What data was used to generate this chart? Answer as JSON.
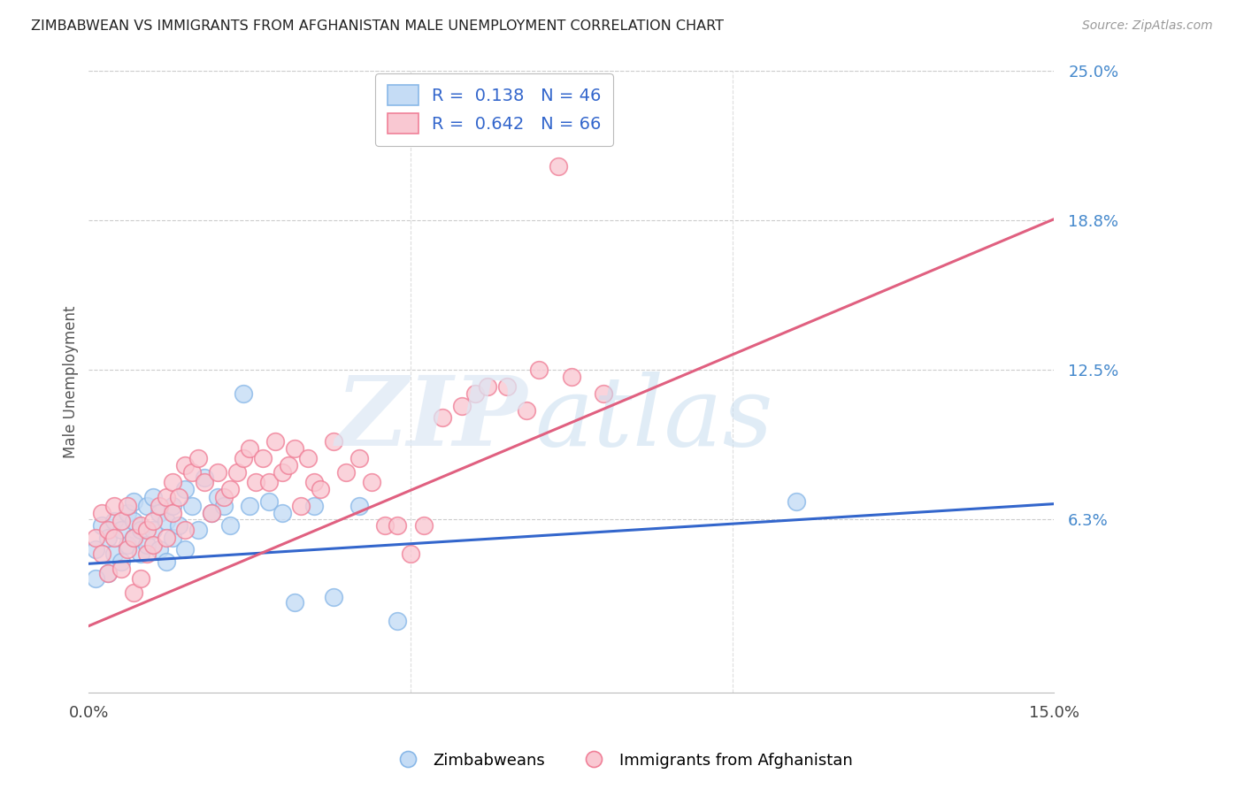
{
  "title": "ZIMBABWEAN VS IMMIGRANTS FROM AFGHANISTAN MALE UNEMPLOYMENT CORRELATION CHART",
  "source": "Source: ZipAtlas.com",
  "ylabel": "Male Unemployment",
  "x_min": 0.0,
  "x_max": 0.15,
  "y_min": -0.01,
  "y_max": 0.25,
  "y_tick_values": [
    0.0625,
    0.125,
    0.1875,
    0.25
  ],
  "y_tick_labels": [
    "6.3%",
    "12.5%",
    "18.8%",
    "25.0%"
  ],
  "blue_edge_color": "#89B8E8",
  "blue_face_color": "#C5DCF5",
  "pink_edge_color": "#F08098",
  "pink_face_color": "#F9C8D2",
  "blue_line_color": "#3366CC",
  "pink_line_color": "#E06080",
  "legend_text_color": "#3366CC",
  "bottom_legend_blue": "Zimbabweans",
  "bottom_legend_pink": "Immigrants from Afghanistan",
  "blue_trend_x0": 0.0,
  "blue_trend_y0": 0.044,
  "blue_trend_x1": 0.15,
  "blue_trend_y1": 0.069,
  "pink_trend_x0": 0.0,
  "pink_trend_y0": 0.018,
  "pink_trend_x1": 0.15,
  "pink_trend_y1": 0.188,
  "blue_scatter_x": [
    0.001,
    0.002,
    0.003,
    0.003,
    0.004,
    0.004,
    0.005,
    0.005,
    0.006,
    0.006,
    0.007,
    0.007,
    0.007,
    0.008,
    0.008,
    0.009,
    0.009,
    0.01,
    0.01,
    0.011,
    0.011,
    0.012,
    0.012,
    0.013,
    0.013,
    0.014,
    0.015,
    0.015,
    0.016,
    0.017,
    0.018,
    0.019,
    0.02,
    0.021,
    0.022,
    0.024,
    0.025,
    0.028,
    0.03,
    0.032,
    0.035,
    0.038,
    0.042,
    0.048,
    0.11,
    0.001
  ],
  "blue_scatter_y": [
    0.05,
    0.06,
    0.04,
    0.055,
    0.062,
    0.048,
    0.058,
    0.045,
    0.065,
    0.052,
    0.062,
    0.055,
    0.07,
    0.058,
    0.048,
    0.068,
    0.052,
    0.072,
    0.058,
    0.065,
    0.05,
    0.062,
    0.045,
    0.068,
    0.055,
    0.06,
    0.075,
    0.05,
    0.068,
    0.058,
    0.08,
    0.065,
    0.072,
    0.068,
    0.06,
    0.115,
    0.068,
    0.07,
    0.065,
    0.028,
    0.068,
    0.03,
    0.068,
    0.02,
    0.07,
    0.038
  ],
  "pink_scatter_x": [
    0.001,
    0.002,
    0.002,
    0.003,
    0.003,
    0.004,
    0.004,
    0.005,
    0.005,
    0.006,
    0.006,
    0.007,
    0.007,
    0.008,
    0.008,
    0.009,
    0.009,
    0.01,
    0.01,
    0.011,
    0.012,
    0.012,
    0.013,
    0.013,
    0.014,
    0.015,
    0.015,
    0.016,
    0.017,
    0.018,
    0.019,
    0.02,
    0.021,
    0.022,
    0.023,
    0.024,
    0.025,
    0.026,
    0.027,
    0.028,
    0.029,
    0.03,
    0.031,
    0.032,
    0.033,
    0.034,
    0.035,
    0.036,
    0.038,
    0.04,
    0.042,
    0.044,
    0.046,
    0.048,
    0.05,
    0.052,
    0.055,
    0.058,
    0.06,
    0.062,
    0.065,
    0.068,
    0.07,
    0.075,
    0.08,
    0.073
  ],
  "pink_scatter_y": [
    0.055,
    0.048,
    0.065,
    0.058,
    0.04,
    0.055,
    0.068,
    0.042,
    0.062,
    0.05,
    0.068,
    0.055,
    0.032,
    0.06,
    0.038,
    0.058,
    0.048,
    0.062,
    0.052,
    0.068,
    0.055,
    0.072,
    0.078,
    0.065,
    0.072,
    0.085,
    0.058,
    0.082,
    0.088,
    0.078,
    0.065,
    0.082,
    0.072,
    0.075,
    0.082,
    0.088,
    0.092,
    0.078,
    0.088,
    0.078,
    0.095,
    0.082,
    0.085,
    0.092,
    0.068,
    0.088,
    0.078,
    0.075,
    0.095,
    0.082,
    0.088,
    0.078,
    0.06,
    0.06,
    0.048,
    0.06,
    0.105,
    0.11,
    0.115,
    0.118,
    0.118,
    0.108,
    0.125,
    0.122,
    0.115,
    0.21
  ]
}
